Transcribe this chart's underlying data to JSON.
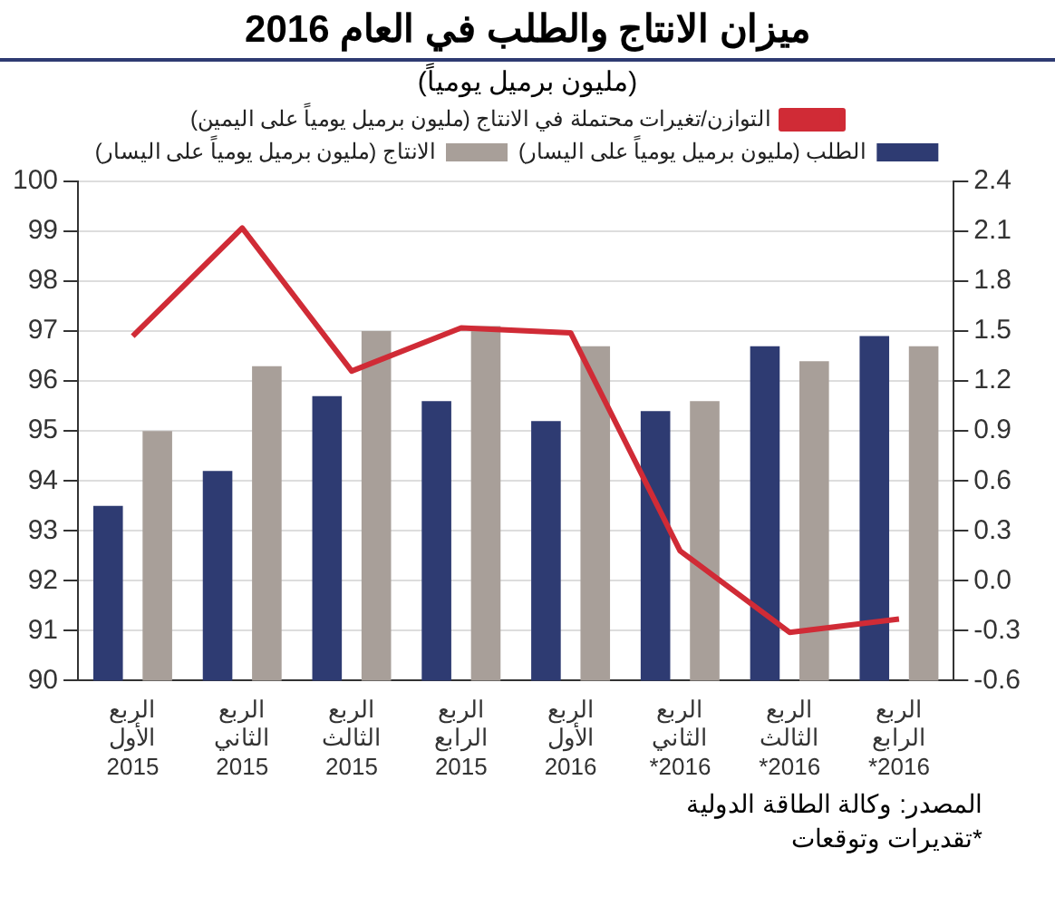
{
  "chart_data": {
    "type": "bar",
    "title": "ميزان الانتاج والطلب في العام 2016",
    "subtitle": "(مليون برميل يومياً)",
    "categories": [
      "الربع\nالأول\n2015",
      "الربع\nالثاني\n2015",
      "الربع\nالثالث\n2015",
      "الربع\nالرابع\n2015",
      "الربع\nالأول\n2016",
      "الربع\nالثاني\n*2016",
      "الربع\nالثالث\n*2016",
      "الربع\nالرابع\n*2016"
    ],
    "series": [
      {
        "name": "الطلب (مليون برميل يومياً على اليسار)",
        "color": "#2e3b72",
        "values": [
          93.5,
          94.2,
          95.7,
          95.6,
          95.2,
          95.4,
          96.7,
          96.9
        ]
      },
      {
        "name": "الانتاج (مليون برميل يومياً على اليسار)",
        "color": "#a89f99",
        "values": [
          95.0,
          96.3,
          97.0,
          97.1,
          96.7,
          95.6,
          96.4,
          96.7
        ]
      },
      {
        "name": "التوازن/تغيرات محتملة في الانتاج (مليون برميل يومياً على اليمين)",
        "type": "line",
        "axis": "y2",
        "color": "#d02b36",
        "values": [
          1.47,
          2.12,
          1.26,
          1.52,
          1.49,
          0.18,
          -0.31,
          -0.23
        ]
      }
    ],
    "ylim": [
      90,
      100
    ],
    "yticks": [
      90,
      91,
      92,
      93,
      94,
      95,
      96,
      97,
      98,
      99,
      100
    ],
    "y2lim": [
      -0.6,
      2.4
    ],
    "y2ticks": [
      -0.6,
      -0.3,
      {
        "value": 0,
        "label": "0.0"
      },
      0.3,
      0.6,
      0.9,
      1.2,
      1.5,
      1.8,
      2.1,
      2.4
    ],
    "grid": "y",
    "legend": "top",
    "marker": "none",
    "annotations": [
      "المصدر: وكالة الطاقة الدولية",
      "*تقديرات وتوقعات"
    ]
  }
}
